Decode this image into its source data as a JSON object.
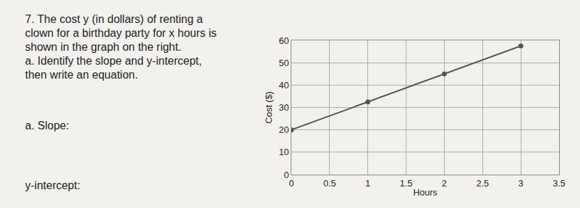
{
  "chart_data": {
    "type": "line",
    "xlabel": "Hours",
    "ylabel": "Cost ($)",
    "x": [
      0,
      1,
      2,
      3
    ],
    "values": [
      20,
      32.5,
      45,
      57.5
    ],
    "color": "#555555",
    "marker": "circle",
    "xlim": [
      0,
      3.5
    ],
    "xticks": [
      0,
      0.5,
      1,
      1.5,
      2,
      2.5,
      3,
      3.5
    ],
    "ylim": [
      0,
      60
    ],
    "yticks": [
      0,
      10,
      20,
      30,
      40,
      50,
      60
    ],
    "grid": true
  },
  "problem": {
    "lines": [
      "7. The cost y (in dollars) of renting a",
      "clown for a birthday party for x hours is",
      "shown in the graph on the right.",
      "a. Identify the slope and y-intercept,",
      "then write an equation."
    ],
    "answers": [
      "a. Slope:",
      "y-intercept:"
    ]
  }
}
